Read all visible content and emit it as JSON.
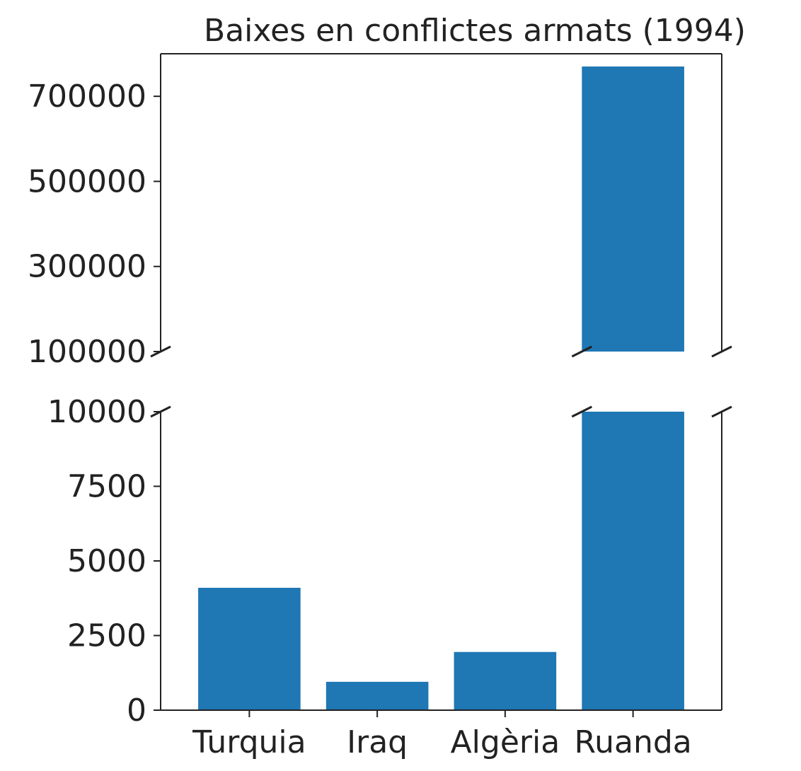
{
  "chart_data": {
    "type": "bar",
    "title": "Baixes en conflictes armats (1994)",
    "xlabel": "",
    "ylabel": "",
    "categories": [
      "Turquia",
      "Iraq",
      "Algèria",
      "Ruanda"
    ],
    "values": [
      4100,
      950,
      1950,
      770000
    ],
    "broken_axis": true,
    "upper_ylim": [
      100000,
      800000
    ],
    "upper_yticks": [
      100000,
      300000,
      500000,
      700000
    ],
    "upper_ytick_labels": [
      "100000",
      "300000",
      "500000",
      "700000"
    ],
    "lower_ylim": [
      0,
      10000
    ],
    "lower_yticks": [
      0,
      2500,
      5000,
      7500,
      10000
    ],
    "lower_ytick_labels": [
      "0",
      "2500",
      "5000",
      "7500",
      "10000"
    ],
    "bar_color": "#1f77b4",
    "grid": false,
    "legend": "none"
  }
}
